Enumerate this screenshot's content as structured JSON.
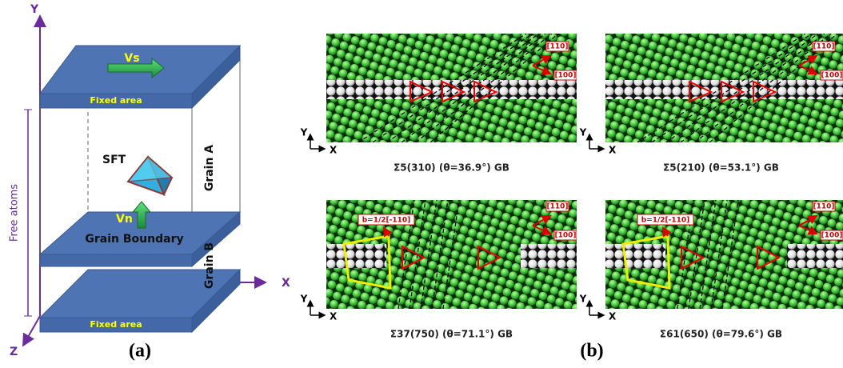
{
  "panel_a": {
    "axis_y": "Y",
    "axis_x": "X",
    "axis_z": "Z",
    "velocity_top": "Vs",
    "fixed_top": "Fixed area",
    "fixed_bottom": "Fixed area",
    "sft": "SFT",
    "grain_a": "Grain A",
    "grain_b": "Grain B",
    "velocity_normal": "Vn",
    "grain_boundary": "Grain Boundary",
    "free_atoms": "Free atoms",
    "label": "(a)"
  },
  "panel_b": {
    "label": "(b)",
    "panels": [
      {
        "caption": "Σ5(310) (θ=36.9°) GB",
        "dir1": "[110]",
        "dir2": "[100]",
        "axis_y": "Y",
        "axis_x": "X"
      },
      {
        "caption": "Σ5(210) (θ=53.1°) GB",
        "dir1": "[110]",
        "dir2": "[100]",
        "axis_y": "Y",
        "axis_x": "X"
      },
      {
        "caption": "Σ37(750) (θ=71.1°) GB",
        "dir1": "[110]",
        "dir2": "[100]",
        "burgers": "b=1/2[-110]",
        "axis_y": "Y",
        "axis_x": "X"
      },
      {
        "caption": "Σ61(650) (θ=79.6°) GB",
        "dir1": "[110]",
        "dir2": "[100]",
        "burgers": "b=1/2[-110]",
        "axis_y": "Y",
        "axis_x": "X"
      }
    ]
  }
}
